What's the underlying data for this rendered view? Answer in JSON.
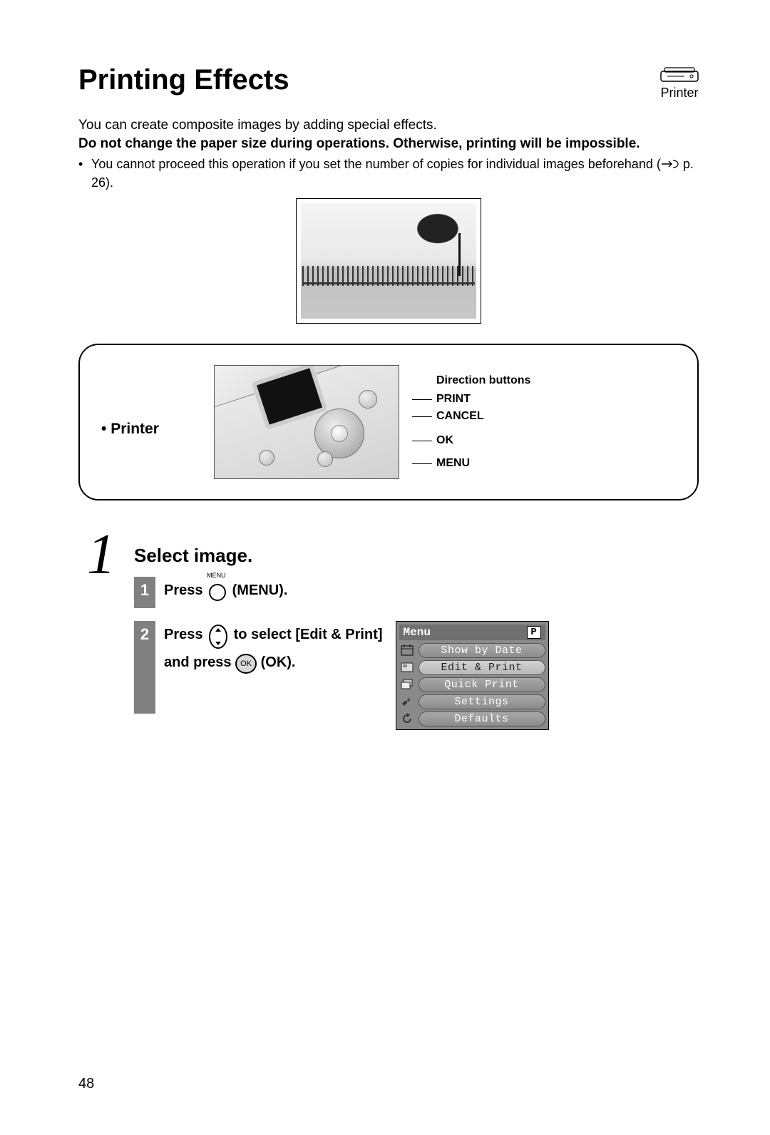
{
  "header": {
    "title": "Printing Effects",
    "device_label": "Printer"
  },
  "intro": {
    "line1": "You can create composite images by adding special effects.",
    "warning": "Do not change the paper size during operations. Otherwise, printing will be impossible.",
    "bullet": "You cannot proceed this operation if you set the number of copies for individual images beforehand (",
    "bullet_page_ref": " p. 26)."
  },
  "diagram": {
    "left_label": "Printer",
    "callouts": {
      "heading": "Direction buttons",
      "c1": "PRINT",
      "c2": "CANCEL",
      "c3": "OK",
      "c4": "MENU"
    }
  },
  "step": {
    "big_num": "1",
    "title": "Select image.",
    "sub1": {
      "num": "1",
      "press": "Press ",
      "menu_word": " (MENU)."
    },
    "sub2": {
      "num": "2",
      "line1a": "Press ",
      "line1b": " to select [Edit & Print]",
      "line2a": "and press ",
      "line2b": " (OK)."
    }
  },
  "menu_screen": {
    "header": "Menu",
    "badge": "P",
    "items": [
      {
        "icon": "calendar",
        "label": "Show by Date",
        "selected": false
      },
      {
        "icon": "card",
        "label": "Edit & Print",
        "selected": true
      },
      {
        "icon": "stack",
        "label": "Quick Print",
        "selected": false
      },
      {
        "icon": "wrench",
        "label": "Settings",
        "selected": false
      },
      {
        "icon": "refresh",
        "label": "Defaults",
        "selected": false
      }
    ]
  },
  "page_number": "48",
  "colors": {
    "text": "#000000",
    "substep_bg": "#808080",
    "menu_bg": "#8a8a8a",
    "pill_text": "#ffffff"
  }
}
